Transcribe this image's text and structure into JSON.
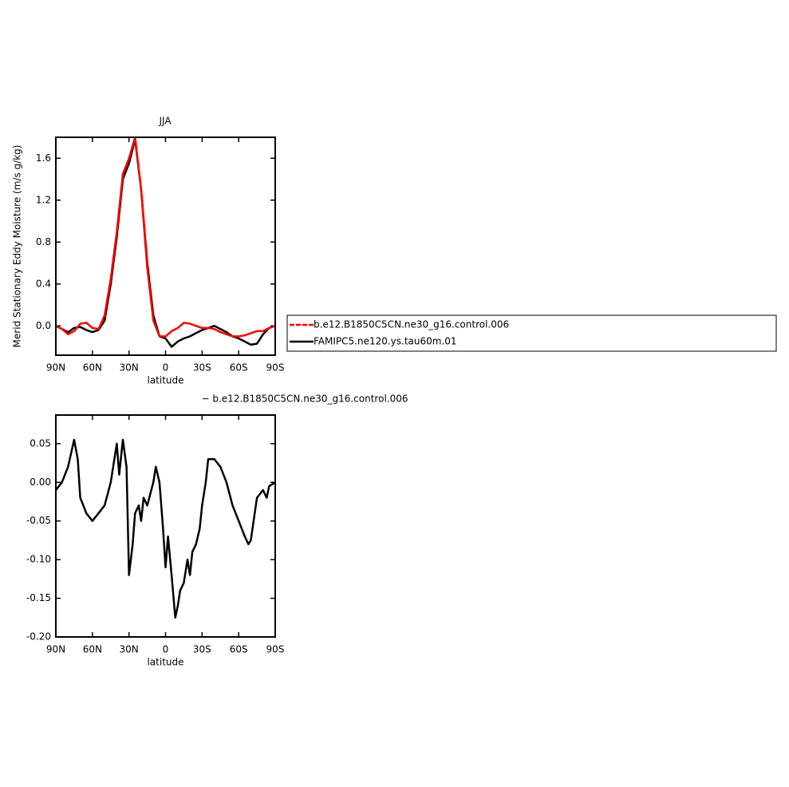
{
  "chart_data": [
    {
      "type": "line",
      "title": "JJA",
      "xlabel": "latitude",
      "ylabel": "Merid Stationary Eddy Moisture (m/s g/kg)",
      "xlim": [
        90,
        -90
      ],
      "xticks": [
        {
          "value": 90,
          "label": "90N"
        },
        {
          "value": 60,
          "label": "60N"
        },
        {
          "value": 30,
          "label": "30N"
        },
        0,
        {
          "value": -30,
          "label": "30S"
        },
        {
          "value": -60,
          "label": "60S"
        },
        {
          "value": -90,
          "label": "90S"
        }
      ],
      "ylim": [
        -0.28,
        1.8
      ],
      "yticks": [
        {
          "value": 0,
          "label": "0.0"
        },
        0.4,
        0.8,
        1.2,
        1.6
      ],
      "legend": "right",
      "x": [
        90,
        85,
        80,
        75,
        70,
        65,
        60,
        55,
        50,
        45,
        40,
        35,
        30,
        25,
        20,
        15,
        10,
        5,
        0,
        -5,
        -10,
        -15,
        -20,
        -25,
        -30,
        -35,
        -40,
        -45,
        -50,
        -55,
        -60,
        -65,
        -70,
        -75,
        -80,
        -85,
        -90
      ],
      "series": [
        {
          "name": "b.e12.B1850C5CN.ne30_g16.control.006",
          "color": "#ff0000",
          "values": [
            0.0,
            -0.03,
            -0.08,
            -0.05,
            0.02,
            0.03,
            -0.02,
            -0.03,
            0.1,
            0.45,
            0.9,
            1.45,
            1.6,
            1.8,
            1.3,
            0.55,
            0.05,
            -0.1,
            -0.1,
            -0.05,
            -0.02,
            0.03,
            0.02,
            0.0,
            -0.02,
            -0.02,
            -0.03,
            -0.06,
            -0.08,
            -0.1,
            -0.1,
            -0.09,
            -0.07,
            -0.05,
            -0.05,
            -0.02,
            0.0
          ]
        },
        {
          "name": "FAMIPC5.ne120.ys.tau60m.01",
          "color": "#000000",
          "values": [
            0.0,
            -0.03,
            -0.06,
            -0.02,
            -0.01,
            -0.04,
            -0.06,
            -0.04,
            0.05,
            0.4,
            0.85,
            1.4,
            1.55,
            1.78,
            1.3,
            0.6,
            0.1,
            -0.1,
            -0.12,
            -0.2,
            -0.15,
            -0.12,
            -0.1,
            -0.07,
            -0.04,
            -0.02,
            0.0,
            -0.03,
            -0.06,
            -0.1,
            -0.12,
            -0.15,
            -0.18,
            -0.17,
            -0.08,
            -0.02,
            0.0
          ]
        }
      ]
    },
    {
      "type": "line",
      "title": "− b.e12.B1850C5CN.ne30_g16.control.006",
      "xlabel": "latitude",
      "xlim": [
        90,
        -90
      ],
      "xticks": [
        {
          "value": 90,
          "label": "90N"
        },
        {
          "value": 60,
          "label": "60N"
        },
        {
          "value": 30,
          "label": "30N"
        },
        0,
        {
          "value": -30,
          "label": "30S"
        },
        {
          "value": -60,
          "label": "60S"
        },
        {
          "value": -90,
          "label": "90S"
        }
      ],
      "ylim": [
        -0.2,
        0.087
      ],
      "yticks": [
        {
          "value": -0.2,
          "label": "-0.20"
        },
        -0.15,
        {
          "value": -0.1,
          "label": "-0.10"
        },
        -0.05,
        {
          "value": 0,
          "label": "0.00"
        },
        0.05
      ],
      "x": [
        90,
        85,
        80,
        75,
        72,
        70,
        65,
        60,
        55,
        50,
        45,
        40,
        38,
        35,
        32,
        30,
        27,
        25,
        22,
        20,
        18,
        15,
        10,
        8,
        5,
        2,
        0,
        -2,
        -5,
        -8,
        -10,
        -12,
        -15,
        -18,
        -20,
        -22,
        -25,
        -28,
        -30,
        -33,
        -35,
        -40,
        -45,
        -50,
        -55,
        -60,
        -65,
        -68,
        -70,
        -75,
        -80,
        -83,
        -85,
        -90
      ],
      "series": [
        {
          "color": "#000000",
          "values": [
            -0.01,
            0.0,
            0.02,
            0.055,
            0.03,
            -0.02,
            -0.04,
            -0.05,
            -0.04,
            -0.03,
            0.0,
            0.05,
            0.01,
            0.055,
            0.02,
            -0.12,
            -0.08,
            -0.04,
            -0.03,
            -0.05,
            -0.02,
            -0.03,
            0.0,
            0.02,
            0.0,
            -0.06,
            -0.11,
            -0.07,
            -0.12,
            -0.175,
            -0.16,
            -0.14,
            -0.13,
            -0.1,
            -0.12,
            -0.09,
            -0.08,
            -0.06,
            -0.03,
            0.0,
            0.03,
            0.03,
            0.02,
            0.0,
            -0.03,
            -0.05,
            -0.07,
            -0.08,
            -0.075,
            -0.02,
            -0.01,
            -0.02,
            -0.005,
            0.0
          ]
        }
      ]
    }
  ]
}
